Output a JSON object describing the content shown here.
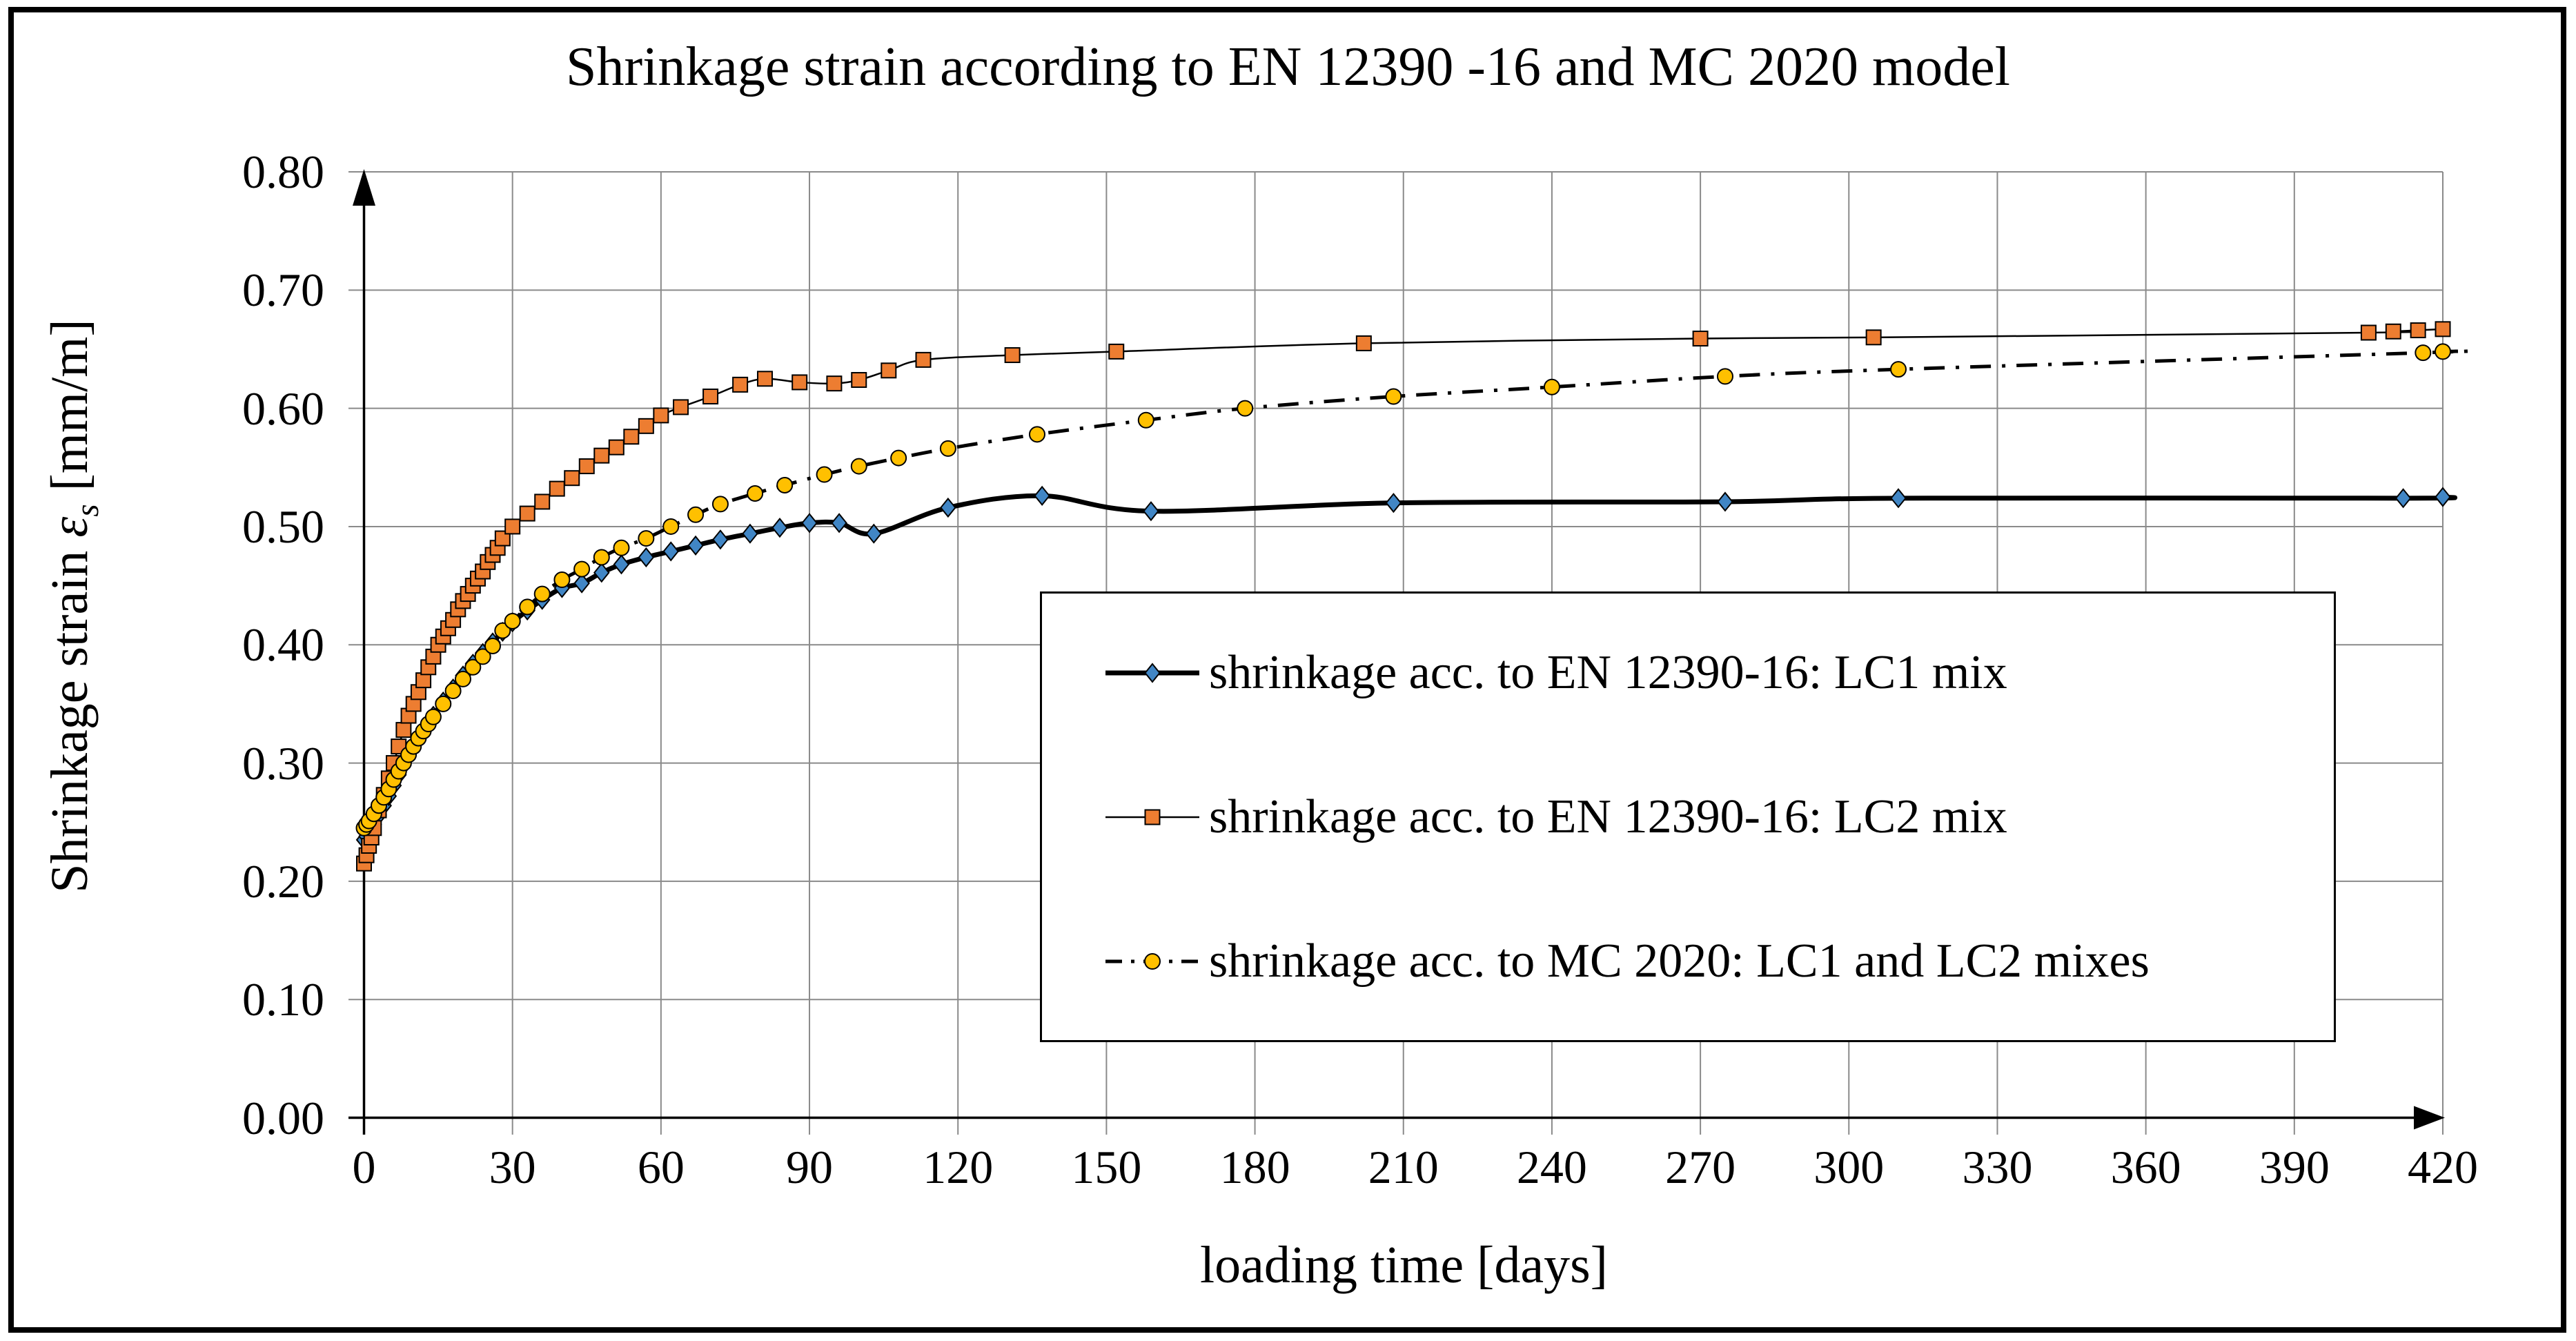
{
  "title": "Shrinkage strain according to EN 12390 -16 and MC 2020 model",
  "axes": {
    "x": {
      "label": "loading time [days]",
      "min": 0,
      "max": 420,
      "ticks": [
        0,
        30,
        60,
        90,
        120,
        150,
        180,
        210,
        240,
        270,
        300,
        330,
        360,
        390,
        420
      ]
    },
    "y": {
      "label_prefix": "Shrinkage strain ",
      "label_symbol": "ε",
      "label_subscript": "s",
      "label_suffix": " [mm/m]",
      "min": 0.0,
      "max": 0.8,
      "ticks": [
        "0.00",
        "0.10",
        "0.20",
        "0.30",
        "0.40",
        "0.50",
        "0.60",
        "0.70",
        "0.80"
      ]
    }
  },
  "grid": {
    "visible": true,
    "color": "#8a8a8a"
  },
  "legend_position": "center-right-inside",
  "chart_data": {
    "type": "line",
    "xlabel": "loading time [days]",
    "ylabel": "Shrinkage strain es [mm/m]",
    "xlim": [
      0,
      420
    ],
    "ylim": [
      0.0,
      0.8
    ],
    "series": [
      {
        "name": "EN 12390-16 LC1",
        "legend_label": "shrinkage acc. to EN 12390-16: LC1 mix",
        "marker": "diamond",
        "color": "#4186C5",
        "line_color": "#000000",
        "line_style": "solid-thick",
        "points": [
          [
            0,
            0.235
          ],
          [
            0.5,
            0.238
          ],
          [
            1,
            0.241
          ],
          [
            2,
            0.248
          ],
          [
            3,
            0.256
          ],
          [
            4,
            0.264
          ],
          [
            5,
            0.272
          ],
          [
            6,
            0.281
          ],
          [
            7,
            0.29
          ],
          [
            8,
            0.298
          ],
          [
            9,
            0.306
          ],
          [
            10,
            0.313
          ],
          [
            11,
            0.32
          ],
          [
            12,
            0.327
          ],
          [
            13,
            0.333
          ],
          [
            14,
            0.34
          ],
          [
            16,
            0.352
          ],
          [
            18,
            0.363
          ],
          [
            20,
            0.374
          ],
          [
            22,
            0.384
          ],
          [
            24,
            0.393
          ],
          [
            26,
            0.402
          ],
          [
            28,
            0.411
          ],
          [
            30,
            0.419
          ],
          [
            33,
            0.429
          ],
          [
            36,
            0.438
          ],
          [
            40,
            0.448
          ],
          [
            44,
            0.452
          ],
          [
            48,
            0.461
          ],
          [
            52,
            0.468
          ],
          [
            57,
            0.474
          ],
          [
            62,
            0.479
          ],
          [
            67,
            0.484
          ],
          [
            72,
            0.489
          ],
          [
            78,
            0.494
          ],
          [
            84,
            0.499
          ],
          [
            90,
            0.503
          ],
          [
            96,
            0.503
          ],
          [
            103,
            0.494
          ],
          [
            118,
            0.516
          ],
          [
            137,
            0.526
          ],
          [
            159,
            0.513
          ],
          [
            208,
            0.52
          ],
          [
            275,
            0.521
          ],
          [
            310,
            0.524
          ],
          [
            412,
            0.524
          ],
          [
            420,
            0.525
          ]
        ]
      },
      {
        "name": "EN 12390-16 LC2",
        "legend_label": "shrinkage acc. to EN 12390-16: LC2 mix",
        "marker": "square",
        "color": "#ED7D31",
        "line_color": "#000000",
        "line_style": "solid-thin",
        "points": [
          [
            0,
            0.215
          ],
          [
            0.5,
            0.222
          ],
          [
            1,
            0.23
          ],
          [
            1.5,
            0.237
          ],
          [
            2,
            0.245
          ],
          [
            3,
            0.26
          ],
          [
            4,
            0.273
          ],
          [
            5,
            0.287
          ],
          [
            6,
            0.3
          ],
          [
            7,
            0.314
          ],
          [
            8,
            0.328
          ],
          [
            9,
            0.34
          ],
          [
            10,
            0.35
          ],
          [
            11,
            0.36
          ],
          [
            12,
            0.37
          ],
          [
            13,
            0.381
          ],
          [
            14,
            0.39
          ],
          [
            15,
            0.4
          ],
          [
            16,
            0.407
          ],
          [
            17,
            0.414
          ],
          [
            18,
            0.421
          ],
          [
            19,
            0.43
          ],
          [
            20,
            0.437
          ],
          [
            21,
            0.443
          ],
          [
            22,
            0.45
          ],
          [
            23,
            0.456
          ],
          [
            24,
            0.462
          ],
          [
            25,
            0.47
          ],
          [
            26,
            0.476
          ],
          [
            27,
            0.482
          ],
          [
            28,
            0.49
          ],
          [
            30,
            0.5
          ],
          [
            33,
            0.511
          ],
          [
            36,
            0.521
          ],
          [
            39,
            0.532
          ],
          [
            42,
            0.541
          ],
          [
            45,
            0.551
          ],
          [
            48,
            0.56
          ],
          [
            51,
            0.567
          ],
          [
            54,
            0.576
          ],
          [
            57,
            0.585
          ],
          [
            60,
            0.594
          ],
          [
            64,
            0.601
          ],
          [
            70,
            0.61
          ],
          [
            76,
            0.62
          ],
          [
            81,
            0.625
          ],
          [
            88,
            0.622
          ],
          [
            95,
            0.621
          ],
          [
            100,
            0.624
          ],
          [
            106,
            0.632
          ],
          [
            113,
            0.641
          ],
          [
            131,
            0.645
          ],
          [
            152,
            0.648
          ],
          [
            202,
            0.655
          ],
          [
            270,
            0.659
          ],
          [
            305,
            0.66
          ],
          [
            405,
            0.664
          ],
          [
            410,
            0.665
          ],
          [
            415,
            0.666
          ],
          [
            420,
            0.667
          ]
        ]
      },
      {
        "name": "MC 2020 model",
        "legend_label": "shrinkage acc. to MC 2020: LC1 and LC2 mixes",
        "marker": "circle",
        "color": "#FFC000",
        "line_color": "#000000",
        "line_style": "dash-dot",
        "points": [
          [
            0,
            0.245
          ],
          [
            0.5,
            0.248
          ],
          [
            1,
            0.251
          ],
          [
            2,
            0.257
          ],
          [
            3,
            0.264
          ],
          [
            4,
            0.271
          ],
          [
            5,
            0.278
          ],
          [
            6,
            0.286
          ],
          [
            7,
            0.293
          ],
          [
            8,
            0.3
          ],
          [
            9,
            0.307
          ],
          [
            10,
            0.314
          ],
          [
            11,
            0.321
          ],
          [
            12,
            0.327
          ],
          [
            13,
            0.333
          ],
          [
            14,
            0.339
          ],
          [
            16,
            0.35
          ],
          [
            18,
            0.361
          ],
          [
            20,
            0.371
          ],
          [
            22,
            0.381
          ],
          [
            24,
            0.39
          ],
          [
            26,
            0.399
          ],
          [
            28,
            0.412
          ],
          [
            30,
            0.42
          ],
          [
            33,
            0.432
          ],
          [
            36,
            0.443
          ],
          [
            40,
            0.455
          ],
          [
            44,
            0.464
          ],
          [
            48,
            0.474
          ],
          [
            52,
            0.482
          ],
          [
            57,
            0.49
          ],
          [
            62,
            0.5
          ],
          [
            67,
            0.51
          ],
          [
            72,
            0.519
          ],
          [
            79,
            0.528
          ],
          [
            85,
            0.535
          ],
          [
            93,
            0.544
          ],
          [
            100,
            0.551
          ],
          [
            108,
            0.558
          ],
          [
            118,
            0.566
          ],
          [
            136,
            0.578
          ],
          [
            158,
            0.59
          ],
          [
            178,
            0.6
          ],
          [
            208,
            0.61
          ],
          [
            240,
            0.618
          ],
          [
            275,
            0.627
          ],
          [
            310,
            0.633
          ],
          [
            416,
            0.647
          ],
          [
            420,
            0.648
          ]
        ]
      }
    ]
  }
}
